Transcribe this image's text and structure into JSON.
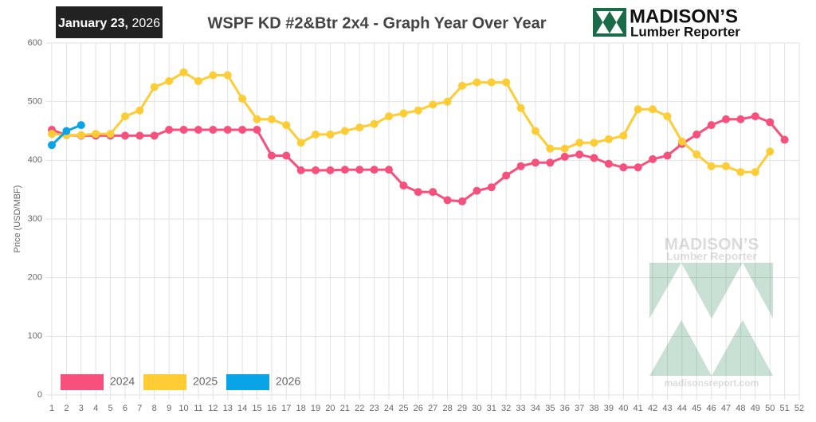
{
  "header": {
    "date_bold": "January 23,",
    "date_year": "2026",
    "logo_name": "MADISON’S",
    "logo_sub": "Lumber Reporter",
    "watermark_name": "MADISON’S",
    "watermark_sub": "Lumber Reporter",
    "watermark_url": "madisonsreport.com"
  },
  "chart_data": {
    "type": "line",
    "title": "WSPF KD #2&Btr 2x4 - Graph Year Over Year",
    "y_label": "Price (USD/MBF)",
    "categories": [
      1,
      2,
      3,
      4,
      5,
      6,
      7,
      8,
      9,
      10,
      11,
      12,
      13,
      14,
      15,
      16,
      17,
      18,
      19,
      20,
      21,
      22,
      23,
      24,
      25,
      26,
      27,
      28,
      29,
      30,
      31,
      32,
      33,
      34,
      35,
      36,
      37,
      38,
      39,
      40,
      41,
      42,
      43,
      44,
      45,
      46,
      47,
      48,
      49,
      50,
      51,
      52
    ],
    "series": [
      {
        "name": "2024",
        "color": "#f7507c",
        "values": [
          452,
          443,
          442,
          442,
          442,
          442,
          442,
          442,
          452,
          452,
          452,
          452,
          452,
          452,
          452,
          408,
          408,
          383,
          383,
          383,
          384,
          384,
          384,
          384,
          357,
          346,
          346,
          332,
          330,
          348,
          354,
          374,
          390,
          396,
          396,
          406,
          410,
          404,
          394,
          388,
          388,
          402,
          408,
          428,
          444,
          460,
          470,
          470,
          475,
          465,
          435,
          null
        ]
      },
      {
        "name": "2025",
        "color": "#fecc35",
        "values": [
          445,
          443,
          443,
          445,
          445,
          475,
          485,
          525,
          535,
          550,
          535,
          545,
          545,
          505,
          470,
          470,
          460,
          430,
          444,
          444,
          450,
          456,
          462,
          475,
          480,
          485,
          495,
          500,
          527,
          533,
          533,
          533,
          489,
          450,
          420,
          420,
          430,
          430,
          436,
          442,
          487,
          487,
          475,
          432,
          410,
          390,
          390,
          380,
          380,
          415,
          null,
          null
        ]
      },
      {
        "name": "2026",
        "color": "#09a4e8",
        "values": [
          426,
          450,
          460,
          null,
          null,
          null,
          null,
          null,
          null,
          null,
          null,
          null,
          null,
          null,
          null,
          null,
          null,
          null,
          null,
          null,
          null,
          null,
          null,
          null,
          null,
          null,
          null,
          null,
          null,
          null,
          null,
          null,
          null,
          null,
          null,
          null,
          null,
          null,
          null,
          null,
          null,
          null,
          null,
          null,
          null,
          null,
          null,
          null,
          null,
          null,
          null,
          null
        ]
      }
    ],
    "ylim": [
      0,
      600
    ],
    "yticks": [
      0,
      100,
      200,
      300,
      400,
      500,
      600
    ],
    "grid": true,
    "legend": "bottom-left"
  }
}
